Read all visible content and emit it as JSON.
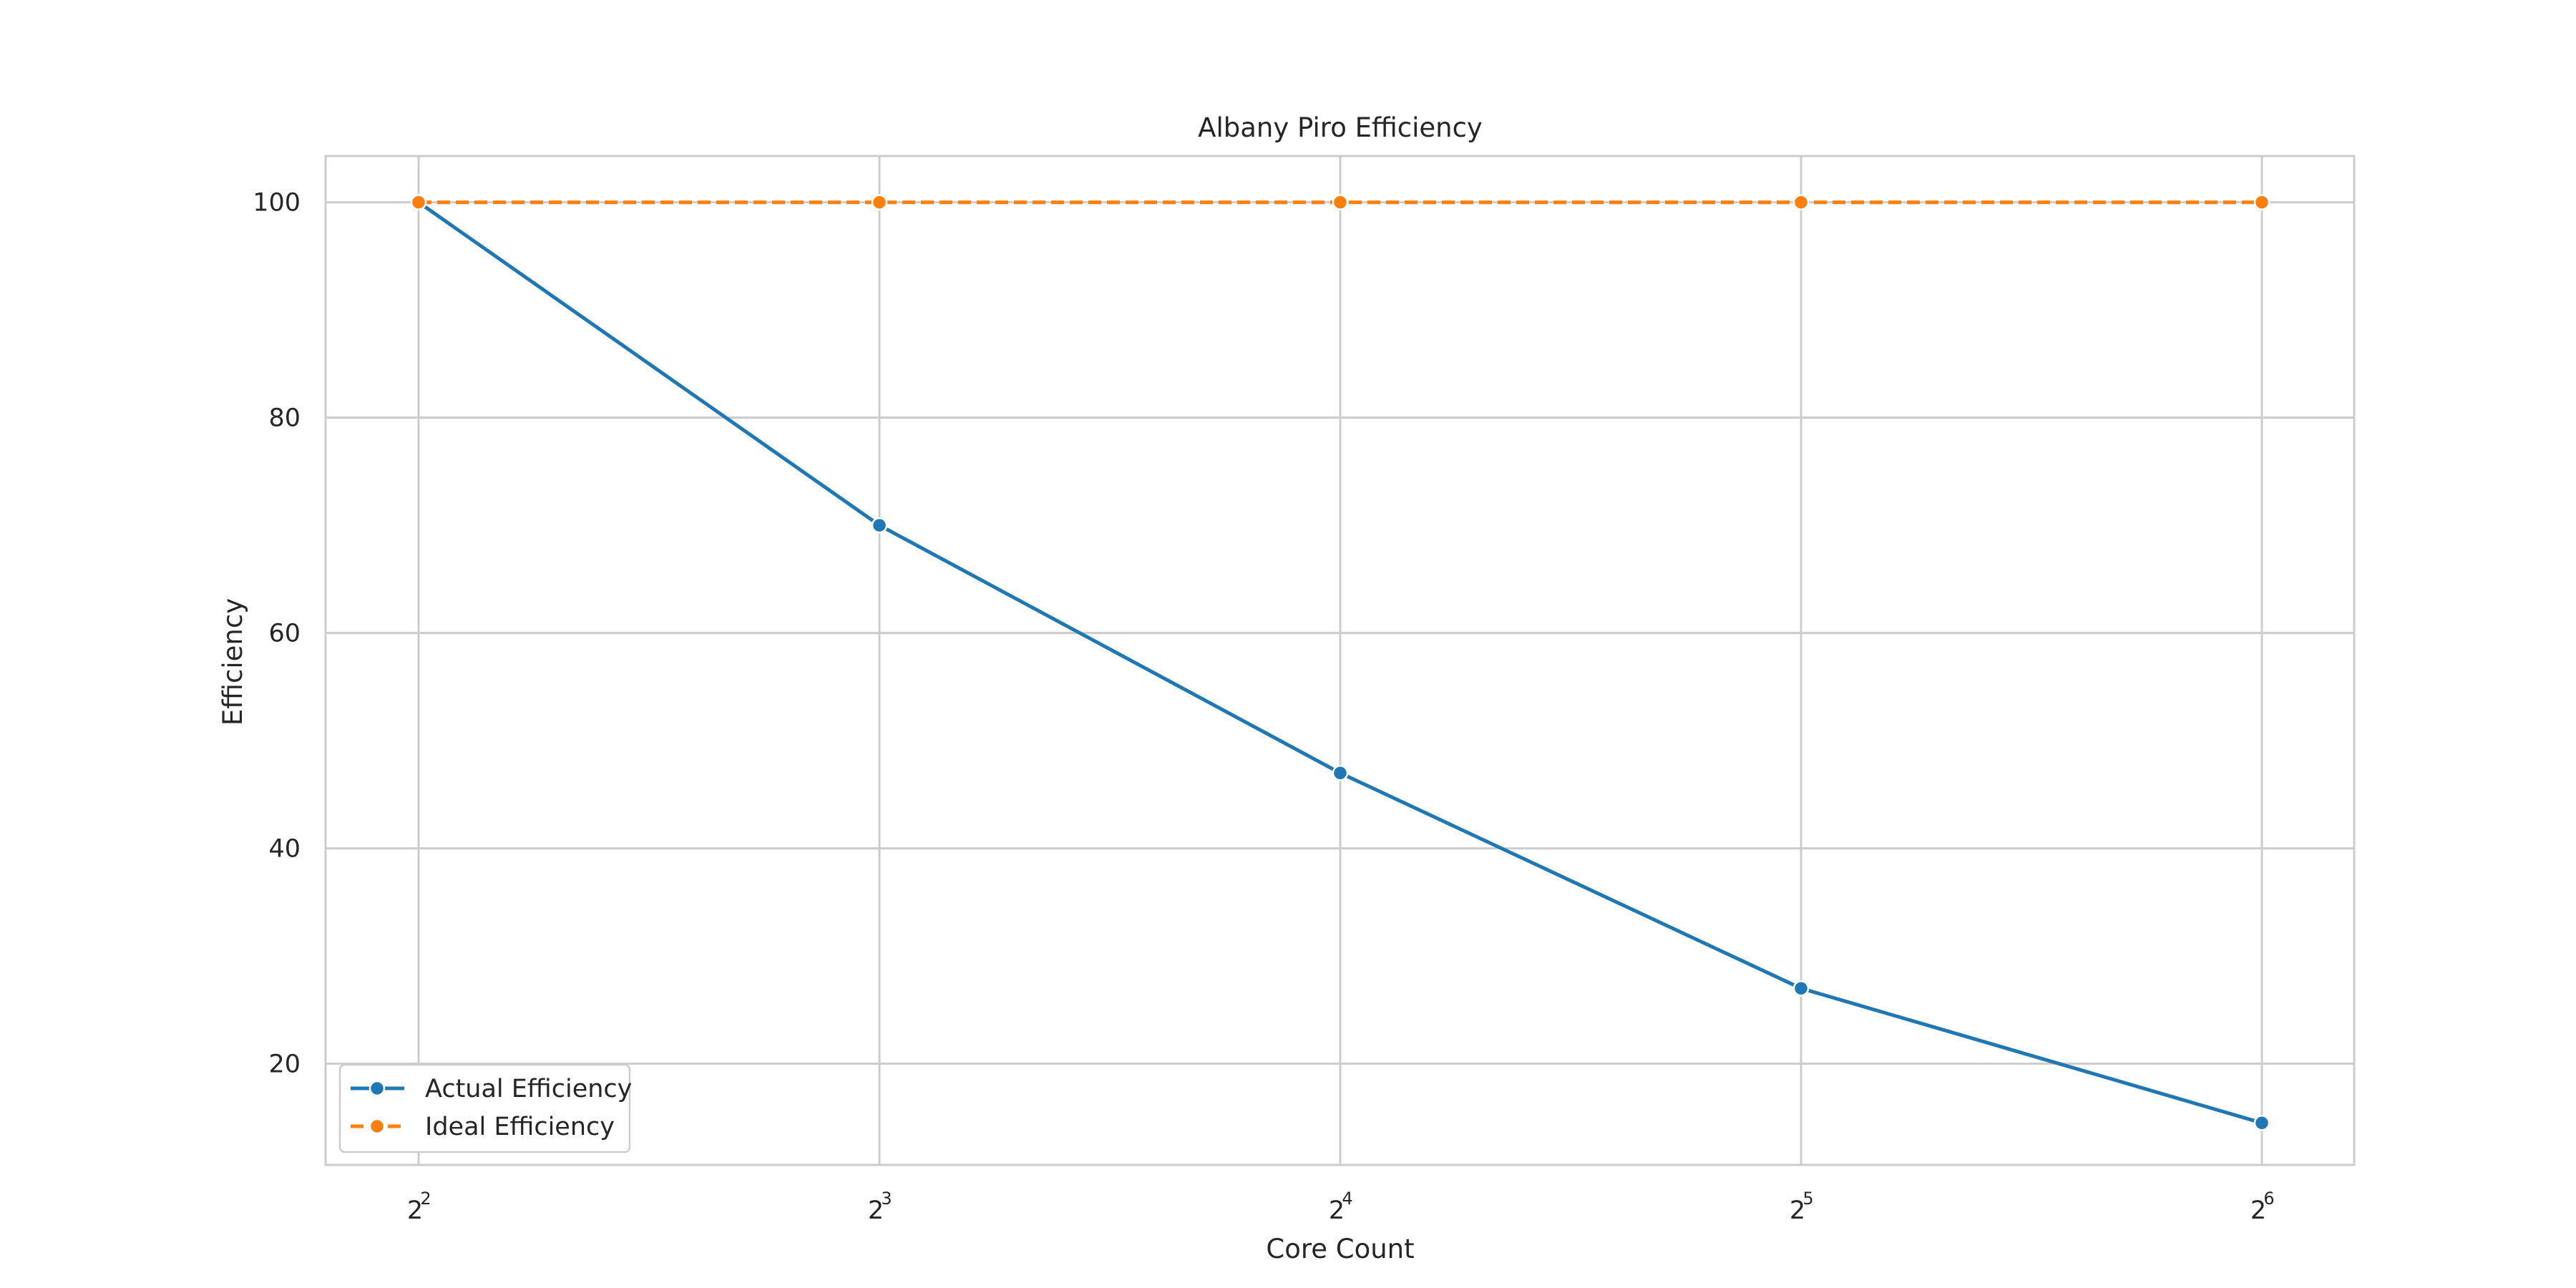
{
  "chart_data": {
    "type": "line",
    "title": "Albany Piro Efficiency",
    "xlabel": "Core Count",
    "ylabel": "Efficiency",
    "x": [
      4,
      8,
      16,
      32,
      64
    ],
    "x_scale": "log2",
    "x_ticks": [
      {
        "base": "2",
        "exp": "2"
      },
      {
        "base": "2",
        "exp": "3"
      },
      {
        "base": "2",
        "exp": "4"
      },
      {
        "base": "2",
        "exp": "5"
      },
      {
        "base": "2",
        "exp": "6"
      }
    ],
    "y_ticks": [
      "20",
      "40",
      "60",
      "80",
      "100"
    ],
    "ylim": [
      10.6,
      104.3
    ],
    "grid": true,
    "legend_position": "lower-left",
    "series": [
      {
        "name": "Actual Efficiency",
        "values": [
          100,
          70,
          47,
          27,
          14.5
        ],
        "color": "#1f77b4",
        "linestyle": "solid",
        "marker": "circle"
      },
      {
        "name": "Ideal Efficiency",
        "values": [
          100,
          100,
          100,
          100,
          100
        ],
        "color": "#ff7f0e",
        "linestyle": "dashed",
        "marker": "circle"
      }
    ]
  }
}
